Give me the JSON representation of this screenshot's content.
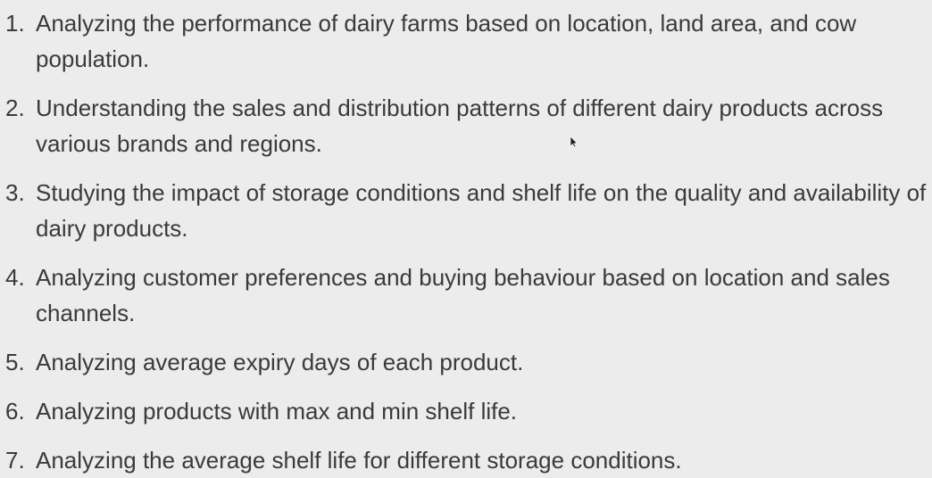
{
  "items": [
    {
      "number": "1.",
      "text": "Analyzing the performance of dairy farms based on location, land area, and cow population."
    },
    {
      "number": "2.",
      "text": "Understanding the sales and distribution patterns of different dairy products across various brands and regions."
    },
    {
      "number": "3.",
      "text": "Studying the impact of storage conditions and shelf life on the quality and availability of dairy products."
    },
    {
      "number": "4.",
      "text": "Analyzing customer preferences and buying behaviour based on location and sales channels."
    },
    {
      "number": "5.",
      "text": "Analyzing average expiry days of each product."
    },
    {
      "number": "6.",
      "text": "Analyzing products with max and min shelf life."
    },
    {
      "number": "7.",
      "text": "Analyzing the average shelf life for different storage conditions."
    }
  ],
  "colors": {
    "background": "#ececec",
    "text": "#3a3a3a"
  },
  "icons": {
    "cursor": "mouse-pointer-icon"
  }
}
